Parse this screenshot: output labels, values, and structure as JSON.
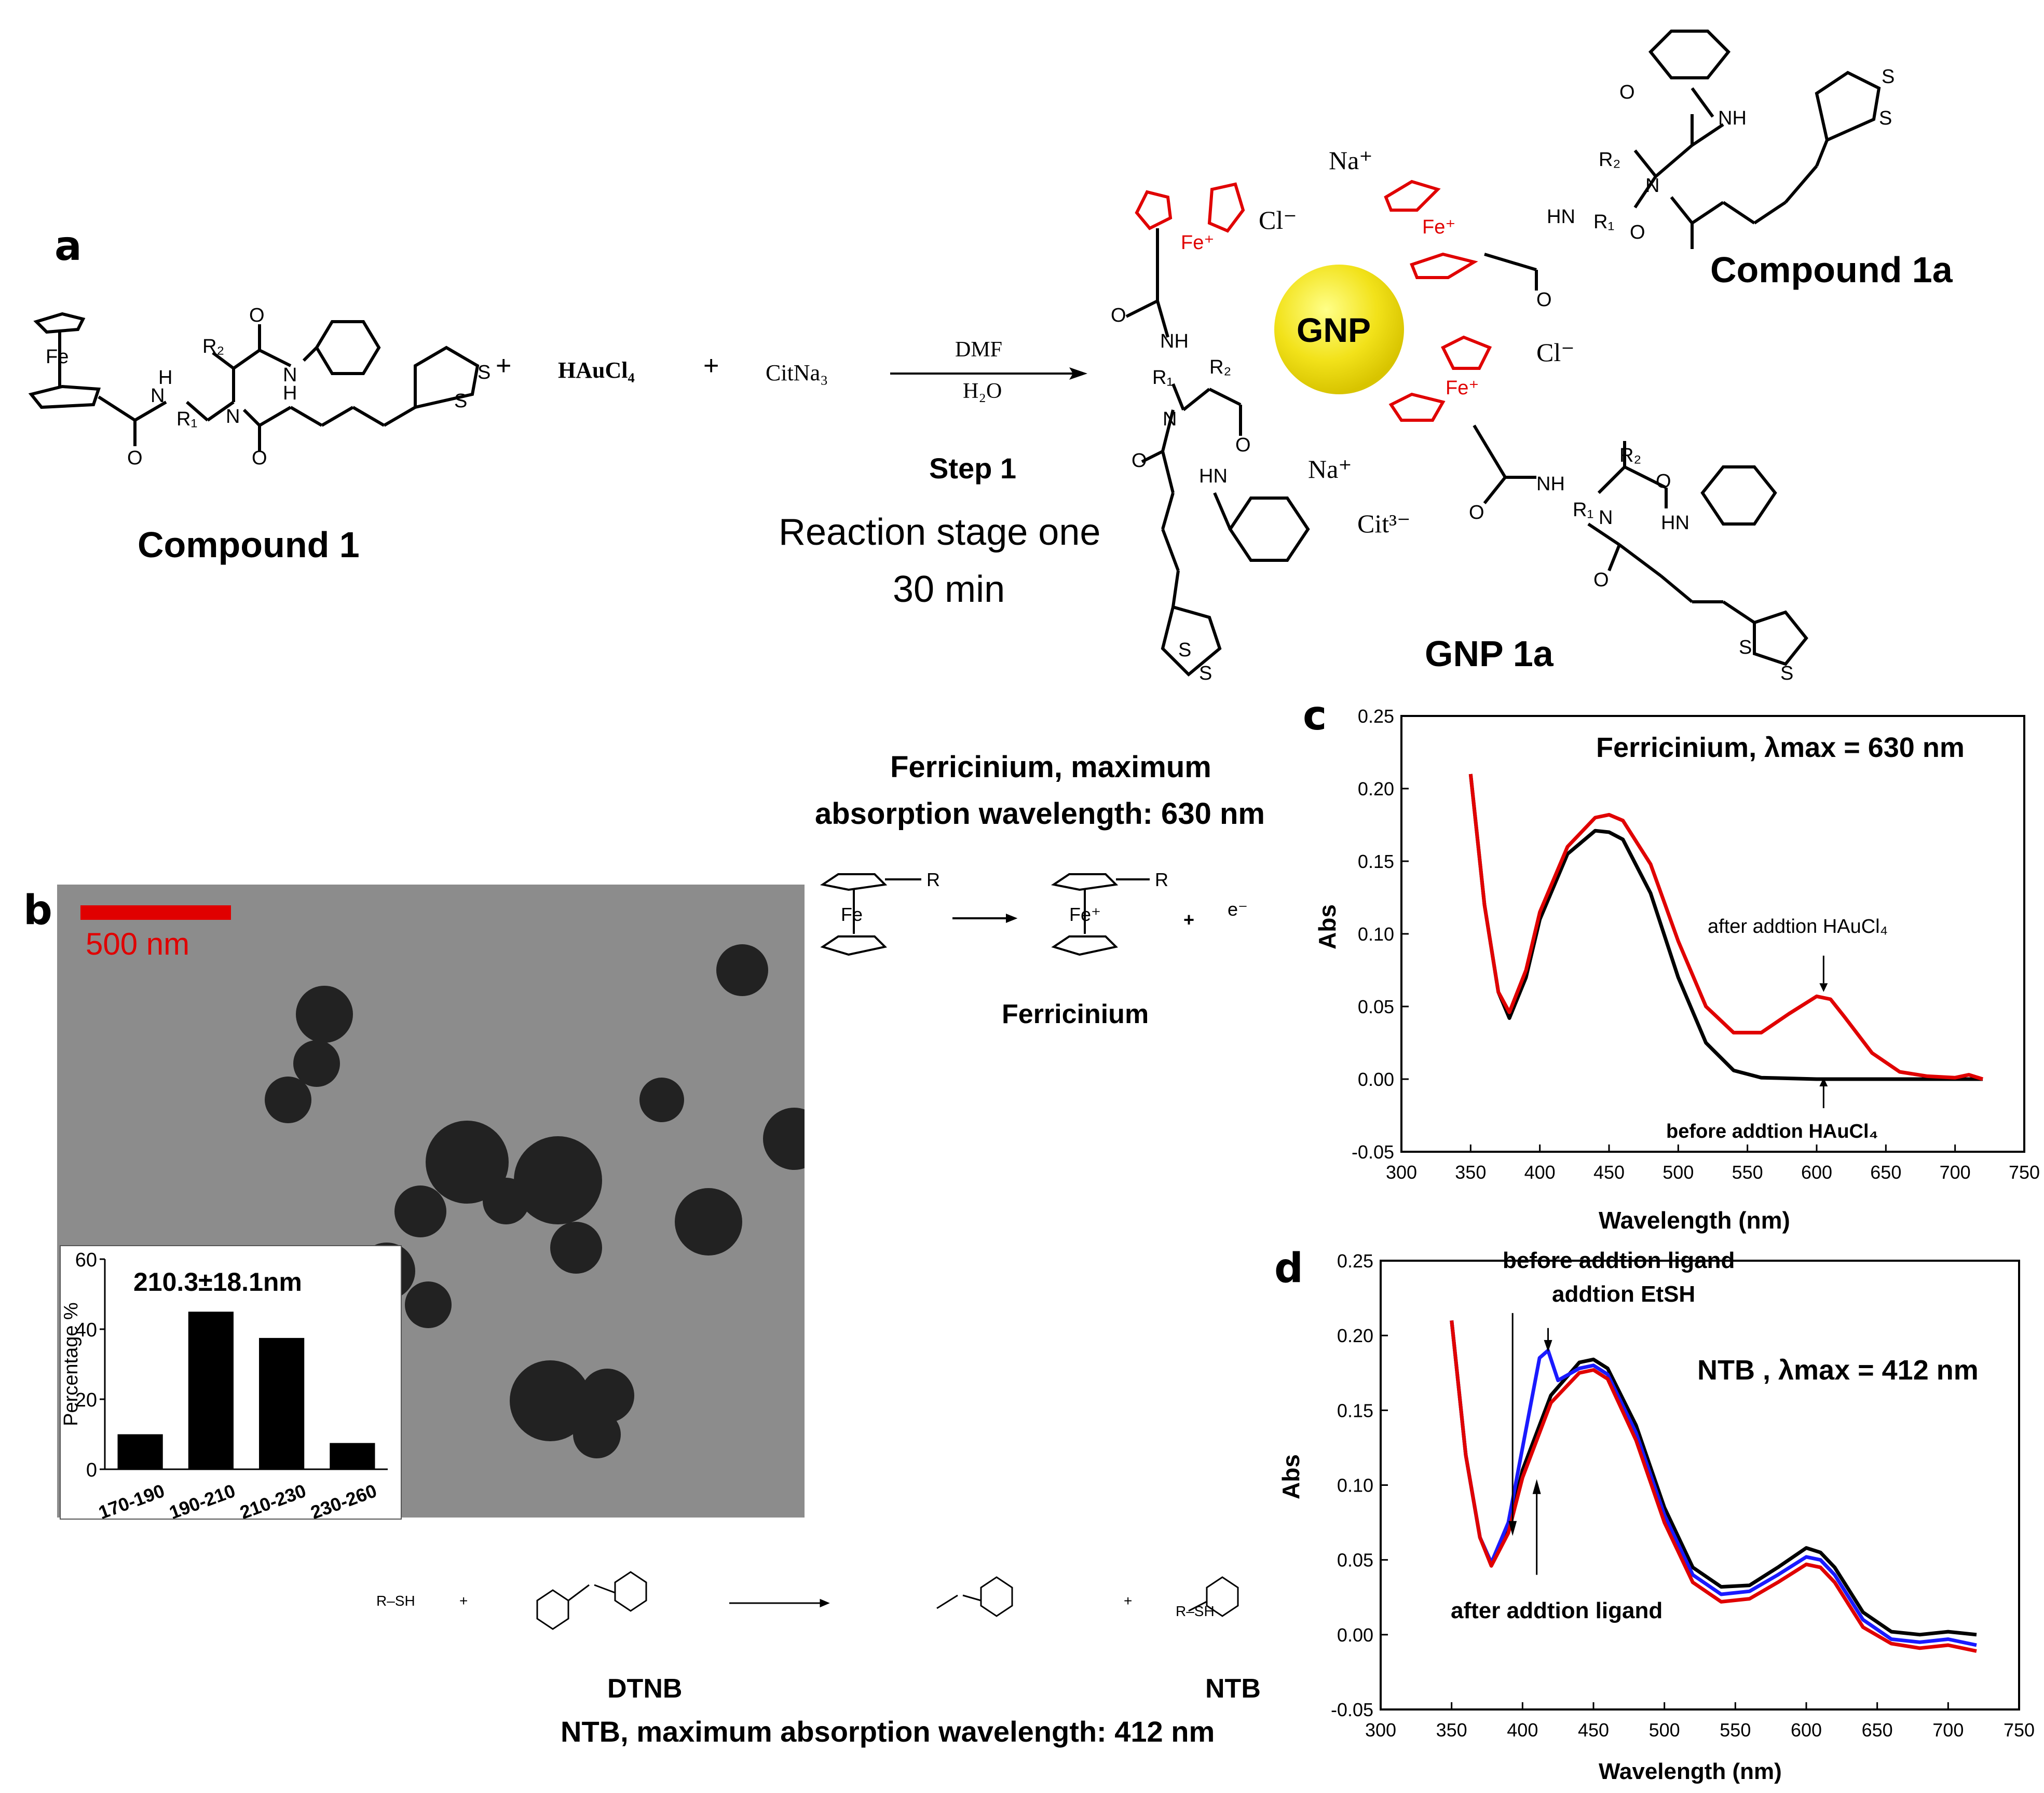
{
  "panel_a": {
    "letter": "a",
    "compound1_label": "Compound 1",
    "plus1": "+",
    "reagent1": "HAuCl₄",
    "plus2": "+",
    "reagent2": "CitNa₃",
    "arrow_top": "DMF",
    "arrow_bottom": "H₂O",
    "step_label": "Step 1",
    "stage_line1": "Reaction stage one",
    "stage_line2": "30 min",
    "gnp_core": "GNP",
    "compound1a_label": "Compound 1a",
    "gnp1a_label": "GNP 1a",
    "ions": {
      "na_top": "Na⁺",
      "cl_top": "Cl⁻",
      "cl_right": "Cl⁻",
      "na_mid": "Na⁺",
      "cit": "Cit³⁻"
    },
    "atoms": {
      "fe": "Fe",
      "fe_plus": "Fe⁺",
      "nh": "NH",
      "hn": "HN",
      "n": "N",
      "h": "H",
      "o": "O",
      "s": "S",
      "r1": "R₁",
      "r2": "R₂"
    }
  },
  "panel_b": {
    "letter": "b",
    "scale_bar": "500 nm",
    "inset": {
      "title": "210.3±18.1nm",
      "ylabel": "Percentage %"
    },
    "ferricinium_title_line1": "Ferricinium, maximum",
    "ferricinium_title_line2": "absorption wavelength: 630 nm",
    "ferricinium_label": "Ferricinium",
    "electron": "e⁻",
    "r_group": "R",
    "dtnb_label": "DTNB",
    "ntb_label": "NTB",
    "ntb_caption": "NTB, maximum absorption wavelength: 412 nm",
    "rsh": "R–SH",
    "plus": "+"
  },
  "panel_c": {
    "letter": "c",
    "annotation": "Ferricinium, λmax = 630 nm",
    "label_after": "after addtion HAuCl₄",
    "label_before": "before addtion HAuCl₄",
    "xlabel": "Wavelength (nm)",
    "ylabel": "Abs"
  },
  "panel_d": {
    "letter": "d",
    "annotation": "NTB , λmax = 412 nm",
    "label_before_ligand": "before addtion ligand",
    "label_etsh": "addtion EtSH",
    "label_after_ligand": "after addtion ligand",
    "xlabel": "Wavelength (nm)",
    "ylabel": "Abs"
  },
  "chart_data": [
    {
      "id": "histogram",
      "type": "bar",
      "title": "210.3±18.1nm",
      "ylabel": "Percentage %",
      "categories": [
        "170-190",
        "190-210",
        "210-230",
        "230-260"
      ],
      "values": [
        10,
        45,
        37.5,
        7.5
      ],
      "ylim": [
        0,
        60
      ],
      "yticks": [
        0,
        20,
        40,
        60
      ]
    },
    {
      "id": "uv_c",
      "type": "line",
      "xlabel": "Wavelength (nm)",
      "ylabel": "Abs",
      "xlim": [
        300,
        750
      ],
      "ylim": [
        -0.05,
        0.25
      ],
      "xticks": [
        300,
        350,
        400,
        450,
        500,
        550,
        600,
        650,
        700,
        750
      ],
      "yticks": [
        -0.05,
        0.0,
        0.05,
        0.1,
        0.15,
        0.2,
        0.25
      ],
      "series": [
        {
          "color": "#000000",
          "x": [
            350,
            360,
            370,
            378,
            390,
            400,
            420,
            440,
            450,
            460,
            480,
            500,
            520,
            540,
            560,
            600,
            650,
            720
          ],
          "y": [
            0.21,
            0.12,
            0.06,
            0.042,
            0.07,
            0.11,
            0.155,
            0.171,
            0.17,
            0.165,
            0.128,
            0.07,
            0.025,
            0.006,
            0.001,
            0.0,
            0.0,
            0.0
          ]
        },
        {
          "color": "#e00000",
          "x": [
            350,
            360,
            370,
            378,
            390,
            400,
            420,
            440,
            450,
            460,
            480,
            500,
            520,
            540,
            560,
            580,
            600,
            610,
            620,
            640,
            660,
            680,
            700,
            710,
            720
          ],
          "y": [
            0.21,
            0.12,
            0.06,
            0.046,
            0.075,
            0.115,
            0.16,
            0.18,
            0.182,
            0.178,
            0.148,
            0.095,
            0.05,
            0.032,
            0.032,
            0.045,
            0.057,
            0.055,
            0.043,
            0.018,
            0.005,
            0.002,
            0.001,
            0.003,
            0.0
          ]
        }
      ]
    },
    {
      "id": "uv_d",
      "type": "line",
      "xlabel": "Wavelength (nm)",
      "ylabel": "Abs",
      "xlim": [
        300,
        750
      ],
      "ylim": [
        -0.05,
        0.25
      ],
      "xticks": [
        300,
        350,
        400,
        450,
        500,
        550,
        600,
        650,
        700,
        750
      ],
      "yticks": [
        -0.05,
        0.0,
        0.05,
        0.1,
        0.15,
        0.2,
        0.25
      ],
      "series": [
        {
          "color": "#000000",
          "x": [
            350,
            360,
            370,
            378,
            390,
            400,
            420,
            440,
            450,
            460,
            480,
            500,
            520,
            540,
            560,
            580,
            600,
            610,
            620,
            640,
            660,
            680,
            700,
            720
          ],
          "y": [
            0.21,
            0.12,
            0.065,
            0.048,
            0.07,
            0.11,
            0.16,
            0.182,
            0.184,
            0.178,
            0.14,
            0.085,
            0.045,
            0.032,
            0.033,
            0.045,
            0.058,
            0.055,
            0.045,
            0.015,
            0.002,
            0.0,
            0.002,
            0.0
          ]
        },
        {
          "color": "#1a1aff",
          "x": [
            350,
            360,
            370,
            378,
            390,
            405,
            412,
            418,
            425,
            440,
            450,
            460,
            480,
            500,
            520,
            540,
            560,
            580,
            600,
            610,
            620,
            640,
            660,
            680,
            700,
            720
          ],
          "y": [
            0.21,
            0.12,
            0.065,
            0.048,
            0.075,
            0.15,
            0.185,
            0.19,
            0.17,
            0.178,
            0.18,
            0.174,
            0.135,
            0.08,
            0.04,
            0.027,
            0.029,
            0.04,
            0.052,
            0.05,
            0.04,
            0.01,
            -0.003,
            -0.005,
            -0.003,
            -0.007
          ]
        },
        {
          "color": "#e00000",
          "x": [
            350,
            360,
            370,
            378,
            390,
            400,
            420,
            440,
            450,
            460,
            480,
            500,
            520,
            540,
            560,
            580,
            600,
            610,
            620,
            640,
            660,
            680,
            700,
            720
          ],
          "y": [
            0.21,
            0.12,
            0.065,
            0.046,
            0.068,
            0.105,
            0.155,
            0.175,
            0.177,
            0.171,
            0.13,
            0.075,
            0.035,
            0.022,
            0.024,
            0.035,
            0.047,
            0.045,
            0.035,
            0.005,
            -0.006,
            -0.009,
            -0.007,
            -0.011
          ]
        }
      ]
    }
  ]
}
